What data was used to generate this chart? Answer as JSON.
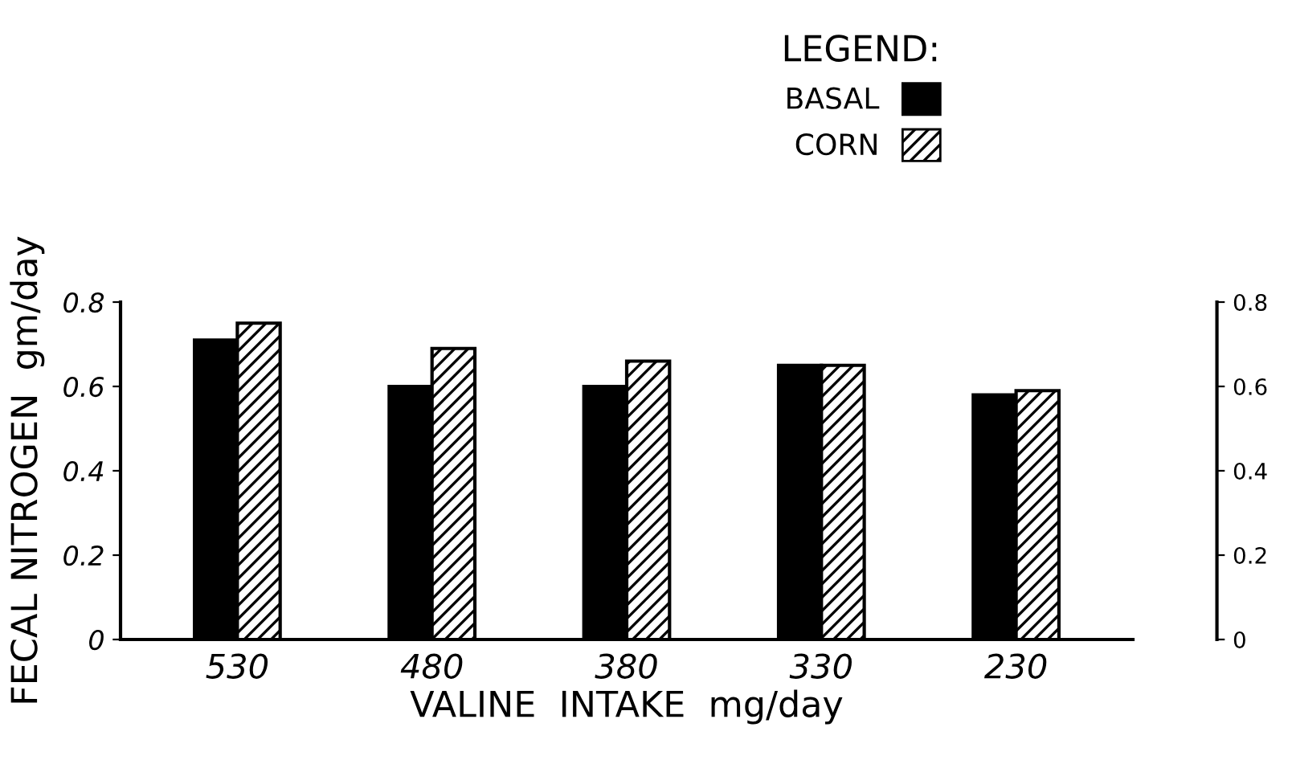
{
  "chart_data": {
    "type": "bar",
    "xlabel": "VALINE  INTAKE  mg/day",
    "ylabel": "FECAL NITROGEN  gm/day",
    "legend_title": "LEGEND:",
    "legend": "top right",
    "categories": [
      "530",
      "480",
      "380",
      "330",
      "230"
    ],
    "series": [
      {
        "name": "BASAL",
        "color": "#000000",
        "values": [
          0.71,
          0.6,
          0.6,
          0.65,
          0.58
        ]
      },
      {
        "name": "CORN",
        "color": "#000000",
        "values": [
          0.75,
          0.69,
          0.66,
          0.65,
          0.59
        ]
      }
    ],
    "ylim": [
      0,
      0.8
    ],
    "yticks": [
      0,
      0.2,
      0.4,
      0.6,
      0.8
    ],
    "y2lim": [
      0,
      0.8
    ],
    "y2ticks": [
      0,
      0.2,
      0.4,
      0.6,
      0.8
    ]
  }
}
